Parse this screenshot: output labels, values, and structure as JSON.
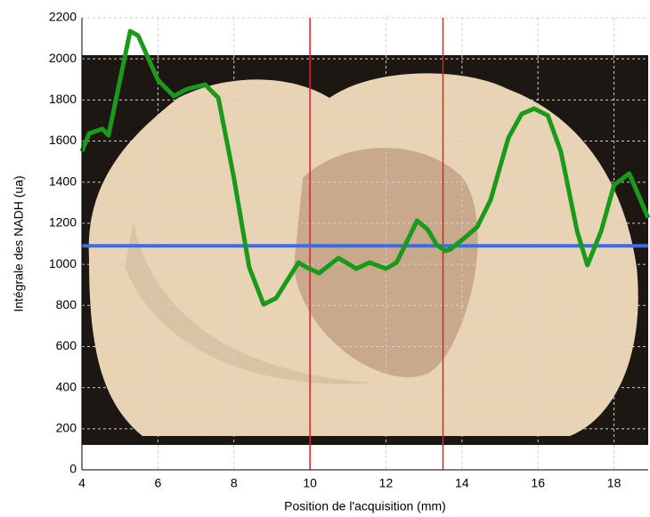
{
  "chart_data": {
    "type": "line",
    "x_label": "Position de l'acquisition (mm)",
    "y_label": "Intégrale des NADH (ua)",
    "xlim": [
      4,
      18.9
    ],
    "ylim": [
      0,
      2200
    ],
    "xticks": [
      4,
      6,
      8,
      10,
      12,
      14,
      16,
      18
    ],
    "yticks": [
      0,
      200,
      400,
      600,
      800,
      1000,
      1200,
      1400,
      1600,
      1800,
      2000,
      2200
    ],
    "grid": true,
    "series": [
      {
        "color": "#1a9a1a",
        "x": [
          4,
          4.19,
          4.54,
          4.7,
          5.27,
          5.48,
          6,
          6.42,
          6.77,
          7.24,
          7.59,
          8,
          8.4,
          8.78,
          9.11,
          9.7,
          9.9,
          10.24,
          10.75,
          11.22,
          11.57,
          12,
          12.28,
          12.82,
          13.1,
          13.33,
          13.57,
          13.7,
          14.05,
          14.4,
          14.75,
          15.22,
          15.57,
          15.9,
          16.26,
          16.6,
          17.03,
          17.3,
          17.66,
          18,
          18.4,
          18.9
        ],
        "values": [
          1550,
          1637,
          1659,
          1628,
          2135,
          2113,
          1897,
          1819,
          1853,
          1875,
          1810,
          1420,
          987,
          805,
          836,
          1009,
          987,
          957,
          1031,
          979,
          1009,
          979,
          1009,
          1213,
          1169,
          1096,
          1065,
          1074,
          1126,
          1182,
          1312,
          1615,
          1732,
          1758,
          1724,
          1550,
          1161,
          996,
          1161,
          1386,
          1442,
          1226
        ]
      }
    ],
    "vlines": {
      "color": "#e02020",
      "x": [
        10,
        13.5
      ]
    },
    "hline": {
      "color": "#3a6ee8",
      "y": 1090
    }
  }
}
